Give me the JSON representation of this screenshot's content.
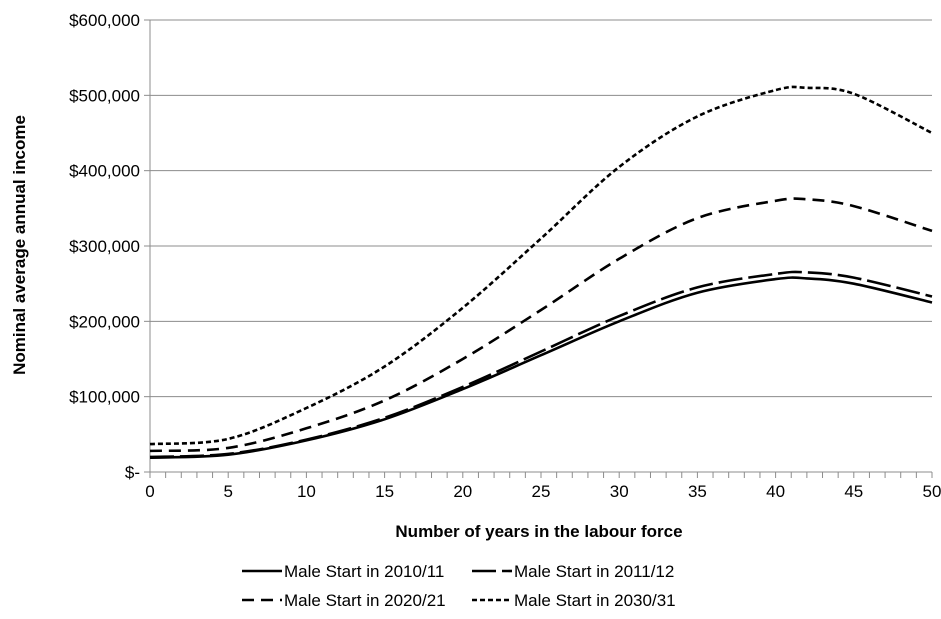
{
  "chart_data": {
    "type": "line",
    "title": "",
    "xlabel": "Number of years in the labour force",
    "ylabel": "Nominal average annual income",
    "xlim": [
      0,
      50
    ],
    "ylim": [
      0,
      600000
    ],
    "grid": "horizontal",
    "legend_position": "bottom",
    "x_ticks": [
      {
        "value": 0,
        "label": "0"
      },
      {
        "value": 5,
        "label": "5"
      },
      {
        "value": 10,
        "label": "10"
      },
      {
        "value": 15,
        "label": "15"
      },
      {
        "value": 20,
        "label": "20"
      },
      {
        "value": 25,
        "label": "25"
      },
      {
        "value": 30,
        "label": "30"
      },
      {
        "value": 35,
        "label": "35"
      },
      {
        "value": 40,
        "label": "40"
      },
      {
        "value": 45,
        "label": "45"
      },
      {
        "value": 50,
        "label": "50"
      }
    ],
    "y_ticks": [
      {
        "value": 0,
        "label": "$-"
      },
      {
        "value": 100000,
        "label": "$100,000"
      },
      {
        "value": 200000,
        "label": "$200,000"
      },
      {
        "value": 300000,
        "label": "$300,000"
      },
      {
        "value": 400000,
        "label": "$400,000"
      },
      {
        "value": 500000,
        "label": "$500,000"
      },
      {
        "value": 600000,
        "label": "$600,000"
      }
    ],
    "x": [
      0,
      5,
      10,
      15,
      20,
      25,
      30,
      35,
      40,
      42,
      45,
      50
    ],
    "series": [
      {
        "name": "Male Start in 2010/11",
        "style": "solid",
        "color": "#000000",
        "values": [
          19000,
          23000,
          42000,
          70000,
          110000,
          155000,
          200000,
          238000,
          256000,
          257000,
          250000,
          225000
        ]
      },
      {
        "name": "Male Start in 2011/12",
        "style": "long-dash",
        "color": "#000000",
        "values": [
          20000,
          24000,
          43000,
          72000,
          113000,
          160000,
          207000,
          245000,
          263000,
          265000,
          258000,
          233000
        ]
      },
      {
        "name": "Male Start in 2020/21",
        "style": "dash",
        "color": "#000000",
        "values": [
          28000,
          32000,
          58000,
          95000,
          150000,
          215000,
          283000,
          337000,
          360000,
          362000,
          353000,
          320000
        ]
      },
      {
        "name": "Male Start in 2030/31",
        "style": "short-dash",
        "color": "#000000",
        "values": [
          37000,
          44000,
          85000,
          140000,
          218000,
          310000,
          405000,
          472000,
          507000,
          510000,
          502000,
          450000
        ]
      }
    ]
  }
}
